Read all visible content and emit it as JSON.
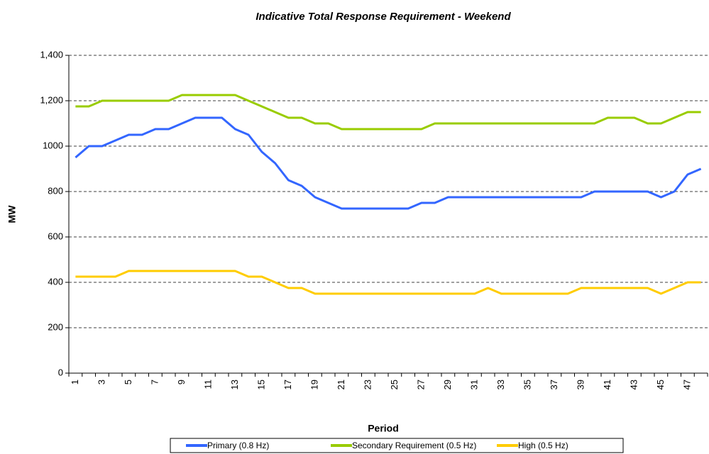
{
  "chart_data": {
    "type": "line",
    "title": "Indicative Total Response Requirement - Weekend",
    "x_label": "Period",
    "y_label": "MW",
    "categories": [
      "1",
      null,
      "3",
      null,
      "5",
      null,
      "7",
      null,
      "9",
      null,
      "11",
      null,
      "13",
      null,
      "15",
      null,
      "17",
      null,
      "19",
      null,
      "21",
      null,
      "23",
      null,
      "25",
      null,
      "27",
      null,
      "29",
      null,
      "31",
      null,
      "33",
      null,
      "35",
      null,
      "37",
      null,
      "39",
      null,
      "41",
      null,
      "43",
      null,
      "45",
      null,
      "47",
      null
    ],
    "series": [
      {
        "name": "Primary (0.8 Hz)",
        "color": "#3366ff",
        "values": [
          950,
          1000,
          1000,
          1025,
          1050,
          1050,
          1075,
          1075,
          1100,
          1125,
          1125,
          1125,
          1075,
          1050,
          975,
          925,
          850,
          825,
          775,
          750,
          725,
          725,
          725,
          725,
          725,
          725,
          750,
          750,
          775,
          775,
          775,
          775,
          775,
          775,
          775,
          775,
          775,
          775,
          775,
          800,
          800,
          800,
          800,
          800,
          775,
          800,
          875,
          900
        ]
      },
      {
        "name": "Secondary Requirement (0.5 Hz)",
        "color": "#99cc00",
        "values": [
          1175,
          1175,
          1200,
          1200,
          1200,
          1200,
          1200,
          1200,
          1225,
          1225,
          1225,
          1225,
          1225,
          1200,
          1175,
          1150,
          1125,
          1125,
          1100,
          1100,
          1075,
          1075,
          1075,
          1075,
          1075,
          1075,
          1075,
          1100,
          1100,
          1100,
          1100,
          1100,
          1100,
          1100,
          1100,
          1100,
          1100,
          1100,
          1100,
          1100,
          1125,
          1125,
          1125,
          1100,
          1100,
          1125,
          1150,
          1150
        ]
      },
      {
        "name": "High (0.5 Hz)",
        "color": "#ffcc00",
        "values": [
          425,
          425,
          425,
          425,
          450,
          450,
          450,
          450,
          450,
          450,
          450,
          450,
          450,
          425,
          425,
          400,
          375,
          375,
          350,
          350,
          350,
          350,
          350,
          350,
          350,
          350,
          350,
          350,
          350,
          350,
          350,
          375,
          350,
          350,
          350,
          350,
          350,
          350,
          375,
          375,
          375,
          375,
          375,
          375,
          350,
          375,
          400,
          400
        ]
      }
    ],
    "ylim": [
      0,
      1400
    ],
    "yticks": [
      0,
      200,
      400,
      600,
      800,
      1000,
      {
        "value": 1200,
        "label": "1,200"
      },
      {
        "value": 1400,
        "label": "1,400"
      }
    ],
    "grid": true,
    "legend": "bottom"
  }
}
